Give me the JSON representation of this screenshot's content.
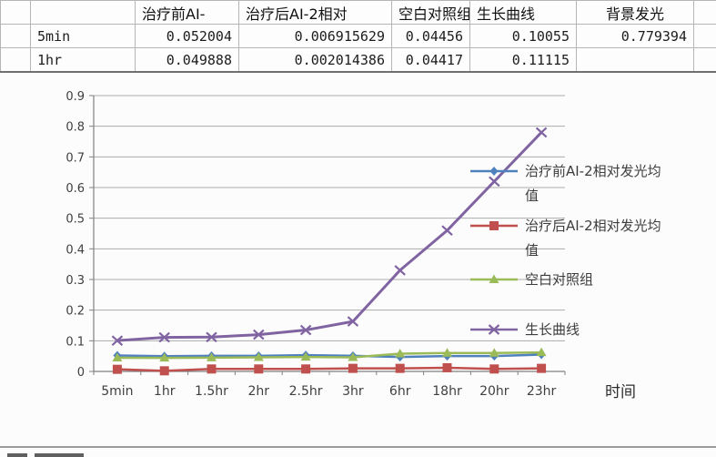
{
  "table": {
    "header": [
      "治疗前AI-",
      "治疗后AI-2相对",
      "空白对照组",
      "生长曲线",
      "背景发光"
    ],
    "rows": [
      {
        "label": "5min",
        "values": [
          "0.052004",
          "0.006915629",
          "0.04456",
          "0.10055",
          "0.779394"
        ]
      },
      {
        "label": "1hr",
        "values": [
          "0.049888",
          "0.002014386",
          "0.04417",
          "0.11115",
          ""
        ]
      }
    ]
  },
  "chart_data": {
    "type": "line",
    "categories": [
      "5min",
      "1hr",
      "1.5hr",
      "2hr",
      "2.5hr",
      "3hr",
      "6hr",
      "18hr",
      "20hr",
      "23hr"
    ],
    "series": [
      {
        "name": "治疗前AI-2相对发光均值",
        "color": "#4F81BD",
        "marker": "diamond",
        "values": [
          0.052,
          0.0499,
          0.051,
          0.051,
          0.053,
          0.051,
          0.047,
          0.05,
          0.05,
          0.055
        ]
      },
      {
        "name": "治疗后AI-2相对发光均值",
        "color": "#C0504D",
        "marker": "square",
        "values": [
          0.0069,
          0.002,
          0.008,
          0.008,
          0.008,
          0.01,
          0.01,
          0.012,
          0.008,
          0.01
        ]
      },
      {
        "name": "空白对照组",
        "color": "#9BBB59",
        "marker": "triangle",
        "values": [
          0.0446,
          0.0442,
          0.045,
          0.046,
          0.047,
          0.046,
          0.058,
          0.06,
          0.06,
          0.062
        ]
      },
      {
        "name": "生长曲线",
        "color": "#8064A2",
        "marker": "x",
        "values": [
          0.1006,
          0.1112,
          0.112,
          0.12,
          0.135,
          0.163,
          0.33,
          0.46,
          0.62,
          0.78
        ]
      }
    ],
    "xlabel": "时间",
    "ylabel": "",
    "ylim": [
      0,
      0.9
    ],
    "ytick_step": 0.1,
    "grid": true,
    "legend_position": "right-overlapping-plot",
    "axis_color": "#808080",
    "grid_color": "#ababab",
    "tick_label_color": "#3f3f3f"
  }
}
